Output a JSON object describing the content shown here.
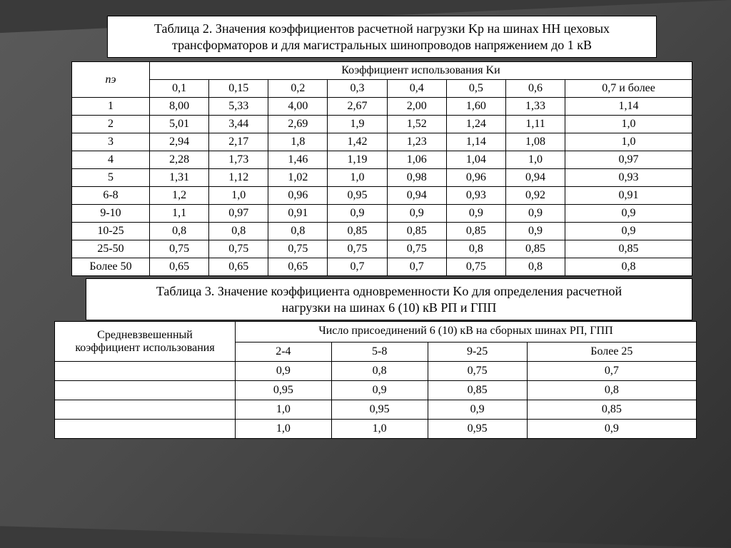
{
  "title1_line1": "Таблица 2. Значения коэффициентов расчетной нагрузки Kр на шинах НН цеховых",
  "title1_line2": "трансформаторов и для магистральных шинопроводов напряжением до 1 кВ",
  "t1": {
    "row_header": "nэ",
    "col_group_label": "Коэффициент использования Kи",
    "cols": [
      "0,1",
      "0,15",
      "0,2",
      "0,3",
      "0,4",
      "0,5",
      "0,6",
      "0,7 и более"
    ],
    "rows": [
      {
        "n": "1",
        "v": [
          "8,00",
          "5,33",
          "4,00",
          "2,67",
          "2,00",
          "1,60",
          "1,33",
          "1,14"
        ]
      },
      {
        "n": "2",
        "v": [
          "5,01",
          "3,44",
          "2,69",
          "1,9",
          "1,52",
          "1,24",
          "1,11",
          "1,0"
        ]
      },
      {
        "n": "3",
        "v": [
          "2,94",
          "2,17",
          "1,8",
          "1,42",
          "1,23",
          "1,14",
          "1,08",
          "1,0"
        ]
      },
      {
        "n": "4",
        "v": [
          "2,28",
          "1,73",
          "1,46",
          "1,19",
          "1,06",
          "1,04",
          "1,0",
          "0,97"
        ]
      },
      {
        "n": "5",
        "v": [
          "1,31",
          "1,12",
          "1,02",
          "1,0",
          "0,98",
          "0,96",
          "0,94",
          "0,93"
        ]
      },
      {
        "n": "6-8",
        "v": [
          "1,2",
          "1,0",
          "0,96",
          "0,95",
          "0,94",
          "0,93",
          "0,92",
          "0,91"
        ]
      },
      {
        "n": "9-10",
        "v": [
          "1,1",
          "0,97",
          "0,91",
          "0,9",
          "0,9",
          "0,9",
          "0,9",
          "0,9"
        ]
      },
      {
        "n": "10-25",
        "v": [
          "0,8",
          "0,8",
          "0,8",
          "0,85",
          "0,85",
          "0,85",
          "0,9",
          "0,9"
        ]
      },
      {
        "n": "25-50",
        "v": [
          "0,75",
          "0,75",
          "0,75",
          "0,75",
          "0,75",
          "0,8",
          "0,85",
          "0,85"
        ]
      },
      {
        "n": "Более 50",
        "v": [
          "0,65",
          "0,65",
          "0,65",
          "0,7",
          "0,7",
          "0,75",
          "0,8",
          "0,8"
        ]
      }
    ]
  },
  "title2_line1": "Таблица 3. Значение коэффициента одновременности Kо для определения расчетной",
  "title2_line2": "нагрузки на шинах 6 (10) кВ РП и ГПП",
  "t2": {
    "row_header_l1": "Средневзвешенный",
    "row_header_l2": "коэффициент использования",
    "col_group_label": "Число присоединений 6 (10) кВ на сборных шинах РП, ГПП",
    "cols": [
      "2-4",
      "5-8",
      "9-25",
      "Более 25"
    ],
    "rows": [
      {
        "v": [
          "0,9",
          "0,8",
          "0,75",
          "0,7"
        ]
      },
      {
        "v": [
          "0,95",
          "0,9",
          "0,85",
          "0,8"
        ]
      },
      {
        "v": [
          "1,0",
          "0,95",
          "0,9",
          "0,85"
        ]
      },
      {
        "v": [
          "1,0",
          "1,0",
          "0,95",
          "0,9"
        ]
      }
    ]
  },
  "colors": {
    "page_bg": "#3a3a3a",
    "panel_bg": "#ffffff",
    "border": "#000000",
    "text": "#000000"
  },
  "fonts": {
    "family": "Times New Roman",
    "title_pt": 18,
    "cell_pt": 16
  }
}
